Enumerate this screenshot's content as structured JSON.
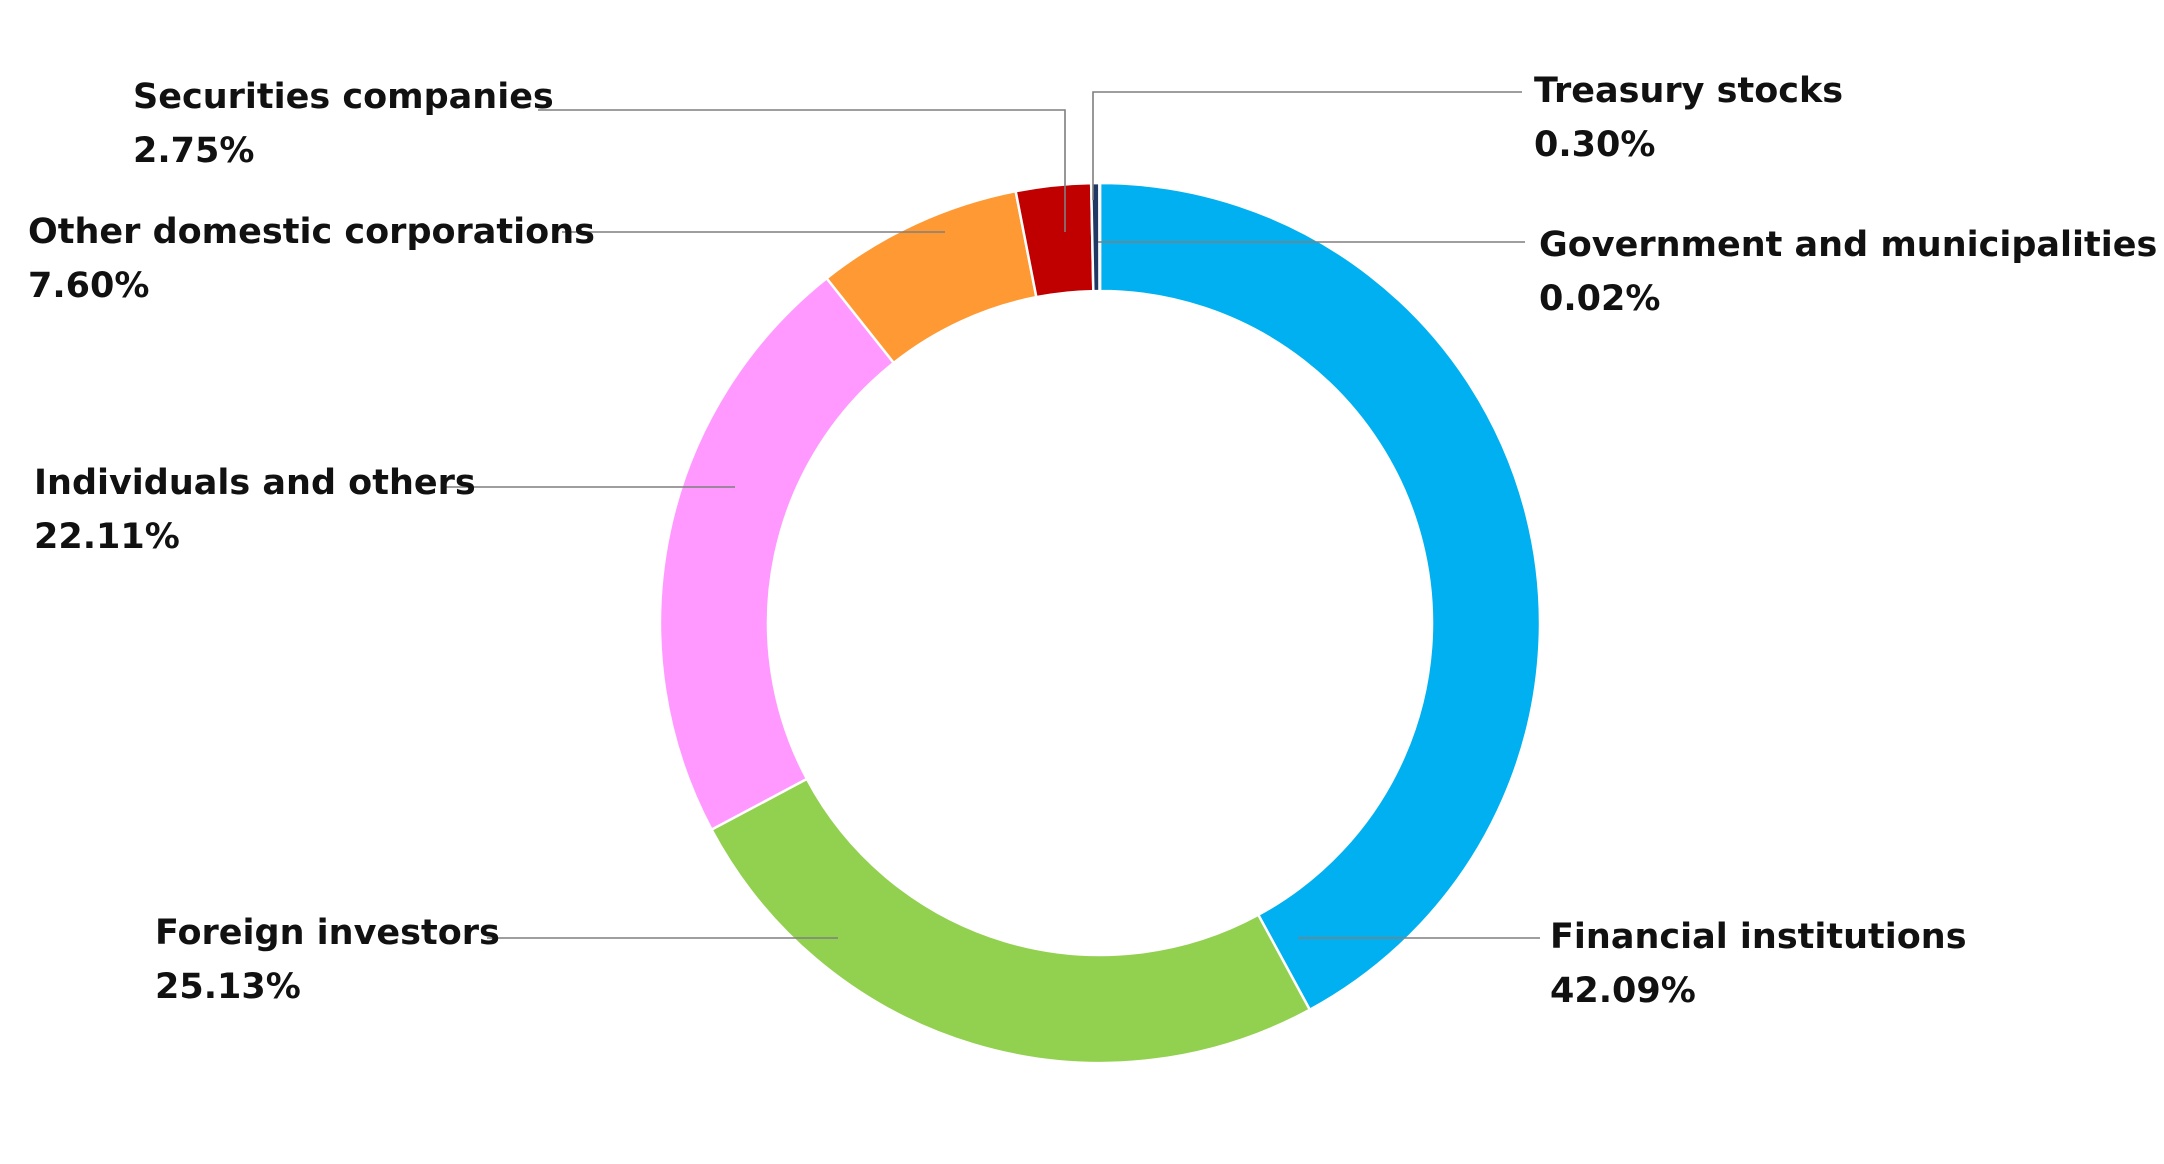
{
  "chart_data": {
    "type": "pie",
    "variant": "donut",
    "title": "",
    "start": "top, clockwise",
    "slices": [
      {
        "label": "Financial institutions",
        "value": 42.09,
        "value_text": "42.09%",
        "color": "#00B0F0"
      },
      {
        "label": "Foreign investors",
        "value": 25.13,
        "value_text": "25.13%",
        "color": "#92D050"
      },
      {
        "label": "Individuals and others",
        "value": 22.11,
        "value_text": "22.11%",
        "color": "#FF99FF"
      },
      {
        "label": "Other domestic corporations",
        "value": 7.6,
        "value_text": "7.60%",
        "color": "#FF9933"
      },
      {
        "label": "Securities companies",
        "value": 2.75,
        "value_text": "2.75%",
        "color": "#C00000"
      },
      {
        "label": "Treasury stocks",
        "value": 0.3,
        "value_text": "0.30%",
        "color": "#203864"
      },
      {
        "label": "Government and municipalities",
        "value": 0.02,
        "value_text": "0.02%",
        "color": "#595959"
      }
    ]
  }
}
